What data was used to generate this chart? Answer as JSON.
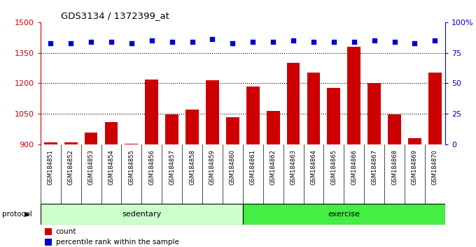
{
  "title": "GDS3134 / 1372399_at",
  "samples": [
    "GSM184851",
    "GSM184852",
    "GSM184853",
    "GSM184854",
    "GSM184855",
    "GSM184856",
    "GSM184857",
    "GSM184858",
    "GSM184859",
    "GSM184860",
    "GSM184861",
    "GSM184862",
    "GSM184863",
    "GSM184864",
    "GSM184865",
    "GSM184866",
    "GSM184867",
    "GSM184868",
    "GSM184869",
    "GSM184870"
  ],
  "red_values": [
    912,
    910,
    960,
    1010,
    905,
    1218,
    1048,
    1070,
    1215,
    1033,
    1183,
    1063,
    1300,
    1252,
    1178,
    1380,
    1202,
    1048,
    930,
    1252
  ],
  "blue_values": [
    83,
    83,
    84,
    84,
    83,
    85,
    84,
    84,
    86,
    83,
    84,
    84,
    85,
    84,
    84,
    84,
    85,
    84,
    83,
    85
  ],
  "sedentary_count": 10,
  "exercise_count": 10,
  "left_ylim": [
    900,
    1500
  ],
  "left_yticks": [
    900,
    1050,
    1200,
    1350,
    1500
  ],
  "right_ylim": [
    0,
    100
  ],
  "right_yticks": [
    0,
    25,
    50,
    75,
    100
  ],
  "right_yticklabels": [
    "0",
    "25",
    "50",
    "75",
    "100%"
  ],
  "bar_color": "#cc0000",
  "dot_color": "#0000cc",
  "sedentary_color": "#ccffcc",
  "exercise_color": "#44ee44",
  "protocol_label": "protocol",
  "sedentary_label": "sedentary",
  "exercise_label": "exercise",
  "legend_count": "count",
  "legend_percentile": "percentile rank within the sample",
  "grid_color": "black",
  "xtick_bg": "#d0d0d0"
}
